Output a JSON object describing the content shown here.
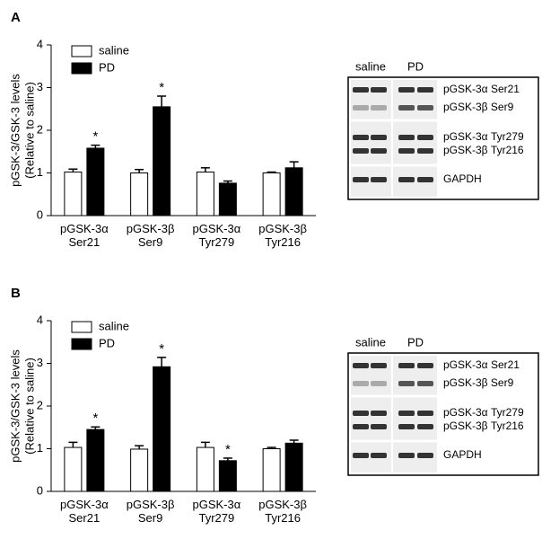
{
  "chart_data": [
    {
      "type": "bar",
      "panel": "A",
      "y_label": [
        "pGSK-3/GSK-3 levels",
        "(Relative to saline)"
      ],
      "categories": [
        "pGSK-3α Ser21",
        "pGSK-3β Ser9",
        "pGSK-3α Tyr279",
        "pGSK-3β Tyr216"
      ],
      "series": [
        {
          "name": "saline",
          "color": "#ffffff",
          "values": [
            1.02,
            1.0,
            1.02,
            1.0
          ],
          "errors": [
            0.07,
            0.08,
            0.1,
            0.02
          ]
        },
        {
          "name": "PD",
          "color": "#000000",
          "values": [
            1.58,
            2.55,
            0.76,
            1.12
          ],
          "errors": [
            0.07,
            0.25,
            0.05,
            0.14
          ],
          "markers": [
            "*",
            "*",
            null,
            null
          ]
        }
      ],
      "ylim": [
        0,
        4
      ],
      "yticks": [
        0,
        1,
        2,
        3,
        4
      ],
      "blot": {
        "columns": [
          "saline",
          "PD"
        ],
        "bands": [
          "pGSK-3α Ser21",
          "pGSK-3β Ser9",
          "pGSK-3α Tyr279",
          "pGSK-3β Tyr216",
          "GAPDH"
        ]
      }
    },
    {
      "type": "bar",
      "panel": "B",
      "y_label": [
        "pGSK-3/GSK-3 levels",
        "(Relative to saline)"
      ],
      "categories": [
        "pGSK-3α Ser21",
        "pGSK-3β Ser9",
        "pGSK-3α Tyr279",
        "pGSK-3β Tyr216"
      ],
      "series": [
        {
          "name": "saline",
          "color": "#ffffff",
          "values": [
            1.03,
            0.99,
            1.03,
            1.0
          ],
          "errors": [
            0.12,
            0.08,
            0.12,
            0.03
          ]
        },
        {
          "name": "PD",
          "color": "#000000",
          "values": [
            1.45,
            2.92,
            0.72,
            1.13
          ],
          "errors": [
            0.06,
            0.22,
            0.06,
            0.07
          ],
          "markers": [
            "*",
            "*",
            "*",
            null
          ]
        }
      ],
      "ylim": [
        0,
        4
      ],
      "yticks": [
        0,
        1,
        2,
        3,
        4
      ],
      "blot": {
        "columns": [
          "saline",
          "PD"
        ],
        "bands": [
          "pGSK-3α Ser21",
          "pGSK-3β Ser9",
          "pGSK-3α Tyr279",
          "pGSK-3β Tyr216",
          "GAPDH"
        ]
      }
    }
  ]
}
